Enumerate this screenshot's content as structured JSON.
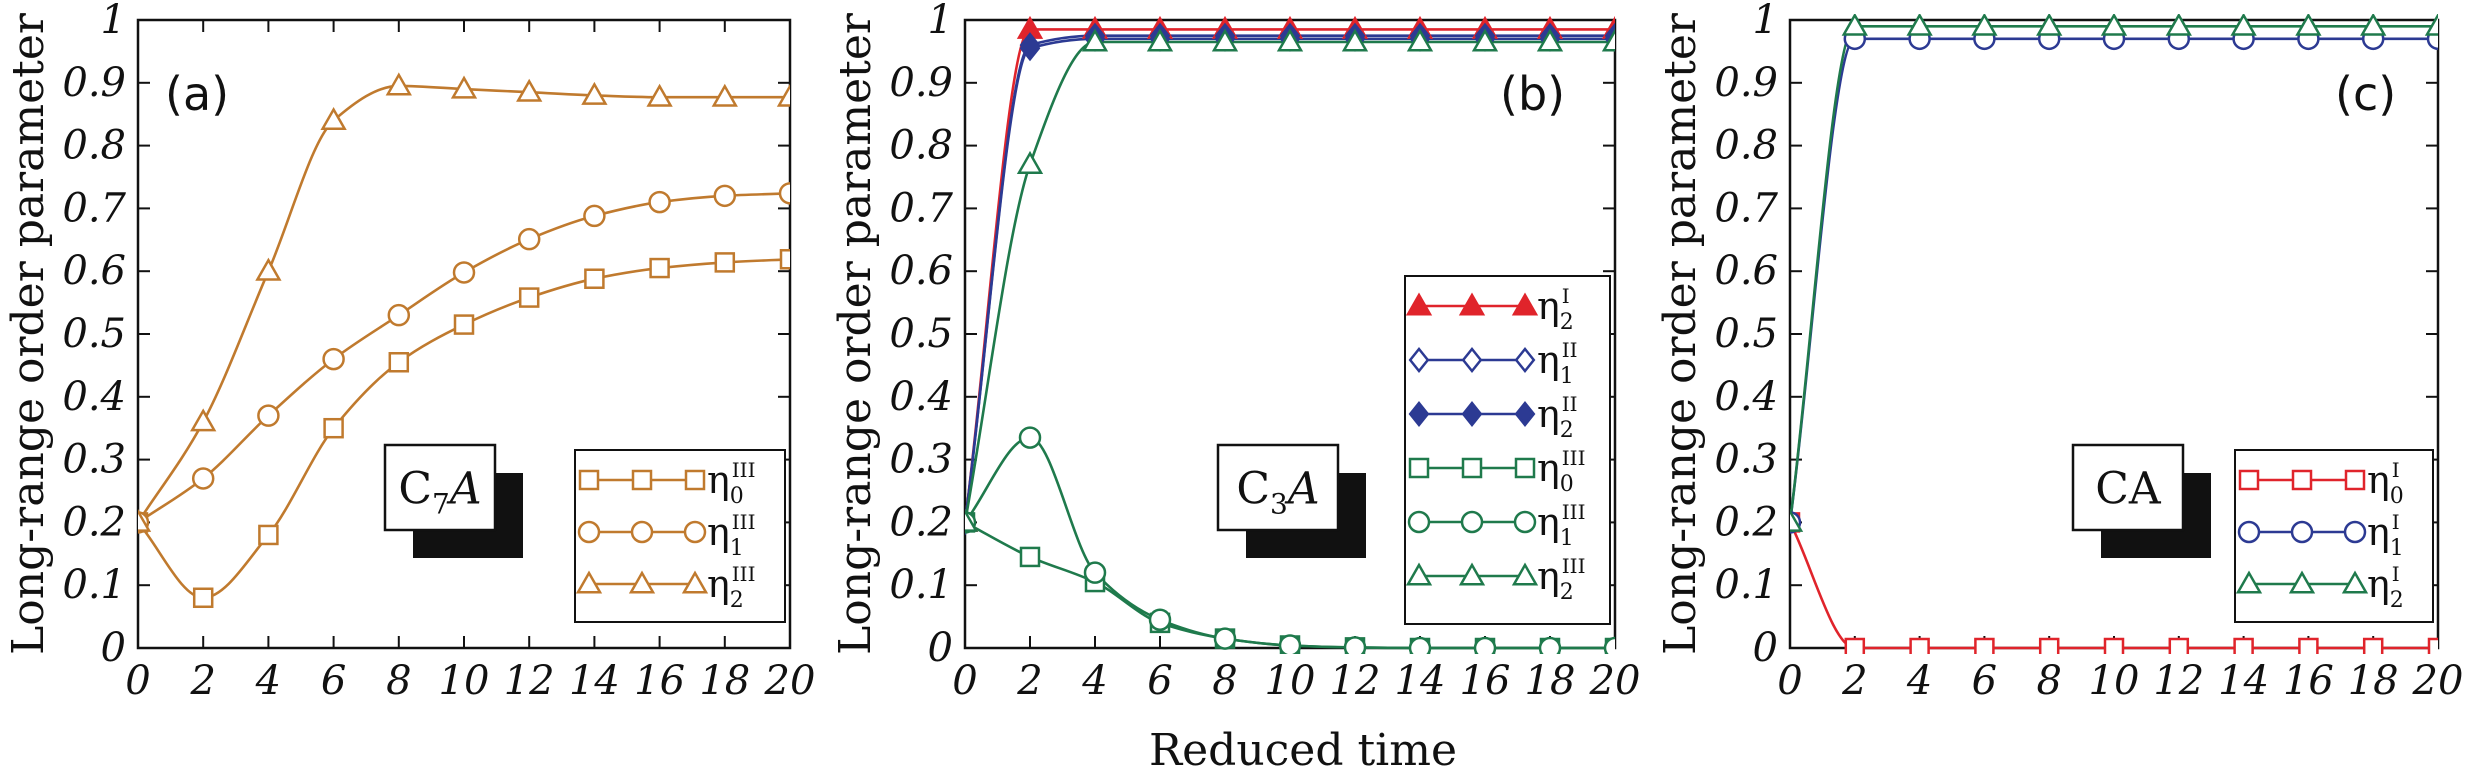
{
  "chart_data": [
    {
      "type": "line",
      "panel_label": "(a)",
      "compound": {
        "base": "C",
        "sub": "7",
        "tail": "A"
      },
      "xlabel": "",
      "ylabel": "Long-range order parameter",
      "xlim": [
        0,
        20
      ],
      "ylim": [
        0,
        1
      ],
      "xticks": [
        "0",
        "2",
        "4",
        "6",
        "8",
        "10",
        "12",
        "14",
        "16",
        "18",
        "20"
      ],
      "yticks": [
        "0",
        "0.1",
        "0.2",
        "0.3",
        "0.4",
        "0.5",
        "0.6",
        "0.7",
        "0.8",
        "0.9",
        "1"
      ],
      "series": [
        {
          "name": "η",
          "sub": "0",
          "sup": "III",
          "color": "#c07a2e",
          "marker": "square",
          "x": [
            0,
            2,
            4,
            6,
            8,
            10,
            12,
            14,
            16,
            18,
            20
          ],
          "values": [
            0.2,
            0.08,
            0.18,
            0.35,
            0.455,
            0.515,
            0.558,
            0.588,
            0.605,
            0.614,
            0.619
          ]
        },
        {
          "name": "η",
          "sub": "1",
          "sup": "III",
          "color": "#c07a2e",
          "marker": "circle",
          "x": [
            0,
            2,
            4,
            6,
            8,
            10,
            12,
            14,
            16,
            18,
            20
          ],
          "values": [
            0.2,
            0.27,
            0.37,
            0.46,
            0.53,
            0.598,
            0.651,
            0.688,
            0.71,
            0.72,
            0.724
          ]
        },
        {
          "name": "η",
          "sub": "2",
          "sup": "III",
          "color": "#c07a2e",
          "marker": "triangle",
          "x": [
            0,
            2,
            4,
            6,
            8,
            10,
            12,
            14,
            16,
            18,
            20
          ],
          "values": [
            0.2,
            0.36,
            0.6,
            0.84,
            0.895,
            0.89,
            0.885,
            0.88,
            0.877,
            0.877,
            0.877
          ]
        }
      ]
    },
    {
      "type": "line",
      "panel_label": "(b)",
      "compound": {
        "base": "C",
        "sub": "3",
        "tail": "A"
      },
      "xlabel": "Reduced time",
      "ylabel": "Long-range order parameter",
      "xlim": [
        0,
        20
      ],
      "ylim": [
        0,
        1
      ],
      "xticks": [
        "0",
        "2",
        "4",
        "6",
        "8",
        "10",
        "12",
        "14",
        "16",
        "18",
        "20"
      ],
      "yticks": [
        "0",
        "0.1",
        "0.2",
        "0.3",
        "0.4",
        "0.5",
        "0.6",
        "0.7",
        "0.8",
        "0.9",
        "1"
      ],
      "series": [
        {
          "name": "η",
          "sub": "2",
          "sup": "I",
          "color": "#e0242b",
          "marker": "triangle-filled",
          "x": [
            0,
            2,
            4,
            6,
            8,
            10,
            12,
            14,
            16,
            18,
            20
          ],
          "values": [
            0.2,
            0.985,
            0.985,
            0.985,
            0.985,
            0.985,
            0.985,
            0.985,
            0.985,
            0.985,
            0.985
          ]
        },
        {
          "name": "η",
          "sub": "1",
          "sup": "II",
          "color": "#2c3a93",
          "marker": "diamond",
          "x": [
            0,
            2,
            4,
            6,
            8,
            10,
            12,
            14,
            16,
            18,
            20
          ],
          "values": [
            0.2,
            0.96,
            0.975,
            0.975,
            0.975,
            0.975,
            0.975,
            0.975,
            0.975,
            0.975,
            0.975
          ]
        },
        {
          "name": "η",
          "sub": "2",
          "sup": "II",
          "color": "#2c3a93",
          "marker": "diamond-filled",
          "x": [
            0,
            2,
            4,
            6,
            8,
            10,
            12,
            14,
            16,
            18,
            20
          ],
          "values": [
            0.2,
            0.955,
            0.97,
            0.97,
            0.97,
            0.97,
            0.97,
            0.97,
            0.97,
            0.97,
            0.97
          ]
        },
        {
          "name": "η",
          "sub": "0",
          "sup": "III",
          "color": "#1f7a4c",
          "marker": "square",
          "x": [
            0,
            2,
            4,
            6,
            8,
            10,
            12,
            14,
            16,
            18,
            20
          ],
          "values": [
            0.2,
            0.145,
            0.105,
            0.04,
            0.015,
            0.004,
            0.001,
            0.0,
            0.0,
            0.0,
            0.0
          ]
        },
        {
          "name": "η",
          "sub": "1",
          "sup": "III",
          "color": "#1f7a4c",
          "marker": "circle",
          "x": [
            0,
            2,
            4,
            6,
            8,
            10,
            12,
            14,
            16,
            18,
            20
          ],
          "values": [
            0.2,
            0.335,
            0.12,
            0.045,
            0.015,
            0.004,
            0.001,
            0.0,
            0.0,
            0.0,
            0.0
          ]
        },
        {
          "name": "η",
          "sub": "2",
          "sup": "III",
          "color": "#1f7a4c",
          "marker": "triangle",
          "x": [
            0,
            2,
            4,
            6,
            8,
            10,
            12,
            14,
            16,
            18,
            20
          ],
          "values": [
            0.2,
            0.77,
            0.965,
            0.965,
            0.965,
            0.965,
            0.965,
            0.965,
            0.965,
            0.965,
            0.965
          ]
        }
      ]
    },
    {
      "type": "line",
      "panel_label": "(c)",
      "compound": {
        "base": "CA",
        "sub": "",
        "tail": ""
      },
      "xlabel": "",
      "ylabel": "Long-range order parameter",
      "xlim": [
        0,
        20
      ],
      "ylim": [
        0,
        1
      ],
      "xticks": [
        "0",
        "2",
        "4",
        "6",
        "8",
        "10",
        "12",
        "14",
        "16",
        "18",
        "20"
      ],
      "yticks": [
        "0",
        "0.1",
        "0.2",
        "0.3",
        "0.4",
        "0.5",
        "0.6",
        "0.7",
        "0.8",
        "0.9",
        "1"
      ],
      "series": [
        {
          "name": "η",
          "sub": "0",
          "sup": "I",
          "color": "#e0242b",
          "marker": "square",
          "x": [
            0,
            2,
            4,
            6,
            8,
            10,
            12,
            14,
            16,
            18,
            20
          ],
          "values": [
            0.2,
            0.0,
            0.0,
            0.0,
            0.0,
            0.0,
            0.0,
            0.0,
            0.0,
            0.0,
            0.0
          ]
        },
        {
          "name": "η",
          "sub": "1",
          "sup": "I",
          "color": "#2c3a93",
          "marker": "circle",
          "x": [
            0,
            2,
            4,
            6,
            8,
            10,
            12,
            14,
            16,
            18,
            20
          ],
          "values": [
            0.2,
            0.97,
            0.97,
            0.97,
            0.97,
            0.97,
            0.97,
            0.97,
            0.97,
            0.97,
            0.97
          ]
        },
        {
          "name": "η",
          "sub": "2",
          "sup": "I",
          "color": "#1f7a4c",
          "marker": "triangle",
          "x": [
            0,
            2,
            4,
            6,
            8,
            10,
            12,
            14,
            16,
            18,
            20
          ],
          "values": [
            0.2,
            0.99,
            0.99,
            0.99,
            0.99,
            0.99,
            0.99,
            0.99,
            0.99,
            0.99,
            0.99
          ]
        }
      ]
    }
  ]
}
